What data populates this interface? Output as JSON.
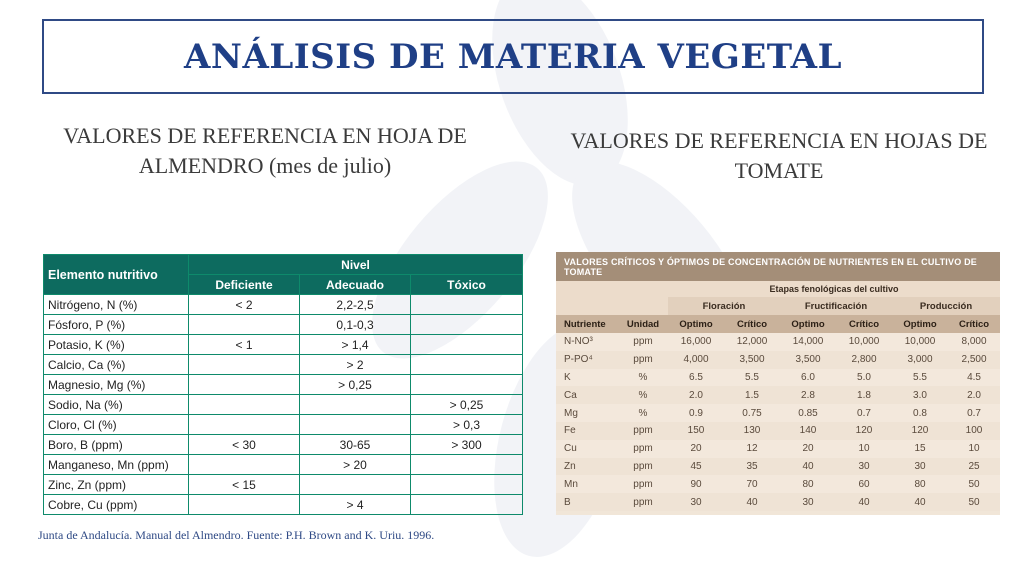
{
  "title": "ANÁLISIS DE MATERIA VEGETAL",
  "subtitle_left": "VALORES DE REFERENCIA EN HOJA DE ALMENDRO (mes de julio)",
  "subtitle_right": "VALORES DE REFERENCIA EN HOJAS DE TOMATE",
  "almond_table": {
    "header_element": "Elemento nutritivo",
    "header_level": "Nivel",
    "levels": [
      "Deficiente",
      "Adecuado",
      "Tóxico"
    ],
    "rows": [
      {
        "element": "Nitrógeno, N (%)",
        "deficiente": "< 2",
        "adecuado": "2,2-2,5",
        "toxico": ""
      },
      {
        "element": "Fósforo, P (%)",
        "deficiente": "",
        "adecuado": "0,1-0,3",
        "toxico": ""
      },
      {
        "element": "Potasio, K (%)",
        "deficiente": "< 1",
        "adecuado": "> 1,4",
        "toxico": ""
      },
      {
        "element": "Calcio, Ca (%)",
        "deficiente": "",
        "adecuado": "> 2",
        "toxico": ""
      },
      {
        "element": "Magnesio, Mg (%)",
        "deficiente": "",
        "adecuado": "> 0,25",
        "toxico": ""
      },
      {
        "element": "Sodio, Na (%)",
        "deficiente": "",
        "adecuado": "",
        "toxico": "> 0,25"
      },
      {
        "element": "Cloro, Cl (%)",
        "deficiente": "",
        "adecuado": "",
        "toxico": "> 0,3"
      },
      {
        "element": "Boro, B (ppm)",
        "deficiente": "< 30",
        "adecuado": "30-65",
        "toxico": "> 300"
      },
      {
        "element": "Manganeso, Mn (ppm)",
        "deficiente": "",
        "adecuado": "> 20",
        "toxico": ""
      },
      {
        "element": "Zinc, Zn (ppm)",
        "deficiente": "< 15",
        "adecuado": "",
        "toxico": ""
      },
      {
        "element": "Cobre, Cu (ppm)",
        "deficiente": "",
        "adecuado": "> 4",
        "toxico": ""
      }
    ]
  },
  "tomato_table": {
    "heading": "VALORES CRÍTICOS Y ÓPTIMOS DE CONCENTRACIÓN DE NUTRIENTES EN EL CULTIVO DE TOMATE",
    "etapas_label": "Etapas fenológicas del cultivo",
    "phases": [
      "Floración",
      "Fructificación",
      "Producción"
    ],
    "col_nutriente": "Nutriente",
    "col_unidad": "Unidad",
    "col_optimo": "Optimo",
    "col_critico": "Crítico",
    "rows": [
      [
        "N-NO³",
        "ppm",
        "16,000",
        "12,000",
        "14,000",
        "10,000",
        "10,000",
        "8,000"
      ],
      [
        "P-PO⁴",
        "ppm",
        "4,000",
        "3,500",
        "3,500",
        "2,800",
        "3,000",
        "2,500"
      ],
      [
        "K",
        "%",
        "6.5",
        "5.5",
        "6.0",
        "5.0",
        "5.5",
        "4.5"
      ],
      [
        "Ca",
        "%",
        "2.0",
        "1.5",
        "2.8",
        "1.8",
        "3.0",
        "2.0"
      ],
      [
        "Mg",
        "%",
        "0.9",
        "0.75",
        "0.85",
        "0.7",
        "0.8",
        "0.7"
      ],
      [
        "Fe",
        "ppm",
        "150",
        "130",
        "140",
        "120",
        "120",
        "100"
      ],
      [
        "Cu",
        "ppm",
        "20",
        "12",
        "20",
        "10",
        "15",
        "10"
      ],
      [
        "Zn",
        "ppm",
        "45",
        "35",
        "40",
        "30",
        "30",
        "25"
      ],
      [
        "Mn",
        "ppm",
        "90",
        "70",
        "80",
        "60",
        "80",
        "50"
      ],
      [
        "B",
        "ppm",
        "30",
        "40",
        "30",
        "40",
        "40",
        "50"
      ]
    ]
  },
  "footer": "Junta de Andalucía. Manual del Almendro. Fuente: P.H. Brown and K. Uriu. 1996."
}
